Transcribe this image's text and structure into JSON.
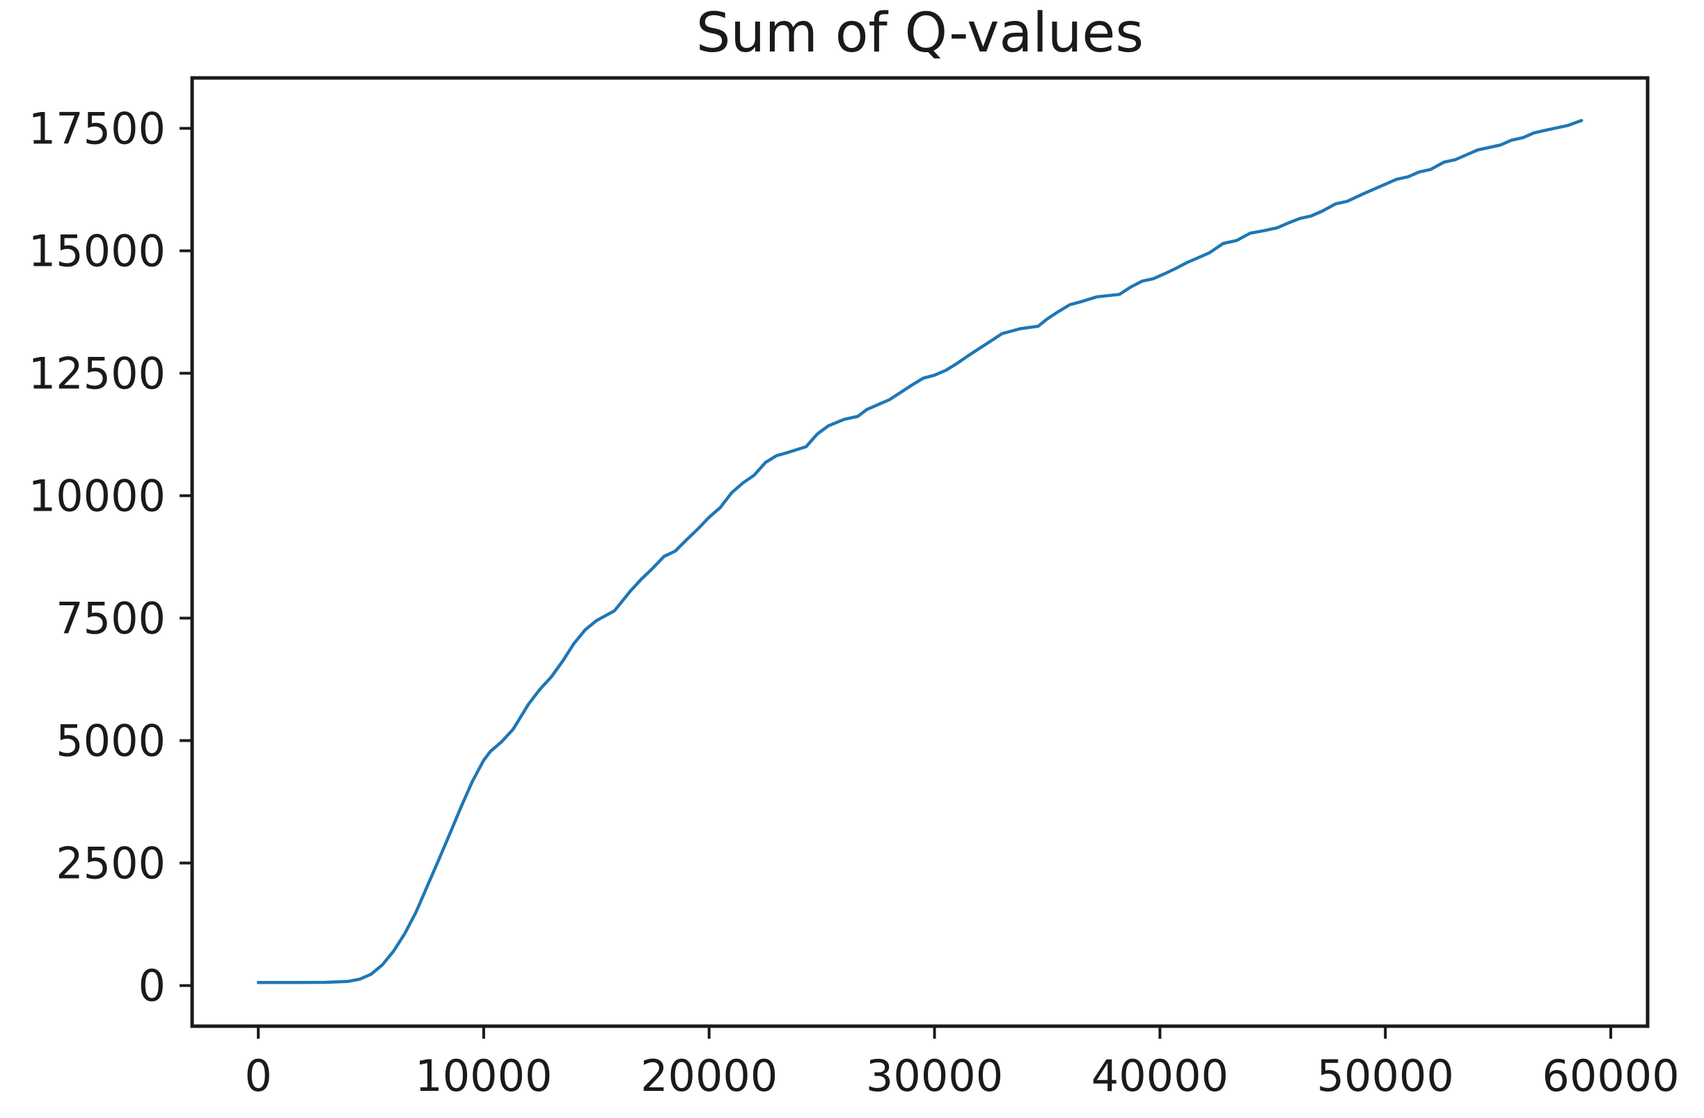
{
  "chart_data": {
    "type": "line",
    "title": "Sum of Q-values",
    "xlabel": "",
    "ylabel": "",
    "xlim": [
      -2935,
      61635
    ],
    "ylim": [
      -830,
      18530
    ],
    "x_ticks": [
      0,
      10000,
      20000,
      30000,
      40000,
      50000,
      60000
    ],
    "y_ticks": [
      0,
      2500,
      5000,
      7500,
      10000,
      12500,
      15000,
      17500
    ],
    "grid": false,
    "legend": "none",
    "line_color": "#1f77b4",
    "axis_color": "#1a1a1a",
    "background_color": "#ffffff",
    "series": [
      {
        "name": "sum-of-q-values",
        "points": [
          [
            0,
            60
          ],
          [
            1500,
            60
          ],
          [
            3000,
            65
          ],
          [
            4000,
            85
          ],
          [
            4500,
            130
          ],
          [
            5000,
            230
          ],
          [
            5500,
            420
          ],
          [
            6000,
            700
          ],
          [
            6500,
            1060
          ],
          [
            7000,
            1500
          ],
          [
            7500,
            2030
          ],
          [
            8000,
            2560
          ],
          [
            8500,
            3100
          ],
          [
            9000,
            3650
          ],
          [
            9500,
            4170
          ],
          [
            10000,
            4600
          ],
          [
            10300,
            4780
          ],
          [
            10800,
            4980
          ],
          [
            11300,
            5230
          ],
          [
            12000,
            5750
          ],
          [
            12500,
            6050
          ],
          [
            13000,
            6300
          ],
          [
            13500,
            6620
          ],
          [
            14000,
            6980
          ],
          [
            14500,
            7260
          ],
          [
            15000,
            7450
          ],
          [
            15400,
            7550
          ],
          [
            15800,
            7650
          ],
          [
            16500,
            8050
          ],
          [
            17000,
            8300
          ],
          [
            17500,
            8520
          ],
          [
            18000,
            8760
          ],
          [
            18500,
            8870
          ],
          [
            19000,
            9100
          ],
          [
            19500,
            9320
          ],
          [
            20000,
            9560
          ],
          [
            20500,
            9760
          ],
          [
            21000,
            10060
          ],
          [
            21500,
            10260
          ],
          [
            22000,
            10420
          ],
          [
            22500,
            10680
          ],
          [
            23000,
            10820
          ],
          [
            23400,
            10870
          ],
          [
            24300,
            11000
          ],
          [
            24800,
            11260
          ],
          [
            25300,
            11430
          ],
          [
            26000,
            11560
          ],
          [
            26600,
            11620
          ],
          [
            27000,
            11760
          ],
          [
            27500,
            11860
          ],
          [
            28000,
            11960
          ],
          [
            28500,
            12110
          ],
          [
            29000,
            12260
          ],
          [
            29500,
            12400
          ],
          [
            30000,
            12460
          ],
          [
            30500,
            12560
          ],
          [
            31000,
            12700
          ],
          [
            31500,
            12860
          ],
          [
            32000,
            13010
          ],
          [
            32500,
            13160
          ],
          [
            33000,
            13310
          ],
          [
            33800,
            13410
          ],
          [
            34600,
            13460
          ],
          [
            35000,
            13610
          ],
          [
            35500,
            13760
          ],
          [
            36000,
            13900
          ],
          [
            36500,
            13960
          ],
          [
            37200,
            14060
          ],
          [
            38200,
            14110
          ],
          [
            38700,
            14260
          ],
          [
            39200,
            14380
          ],
          [
            39700,
            14430
          ],
          [
            40200,
            14530
          ],
          [
            40700,
            14640
          ],
          [
            41200,
            14760
          ],
          [
            41700,
            14860
          ],
          [
            42200,
            14960
          ],
          [
            42800,
            15150
          ],
          [
            43400,
            15210
          ],
          [
            44000,
            15360
          ],
          [
            44600,
            15410
          ],
          [
            45200,
            15470
          ],
          [
            45700,
            15570
          ],
          [
            46200,
            15660
          ],
          [
            46700,
            15710
          ],
          [
            47200,
            15810
          ],
          [
            47800,
            15960
          ],
          [
            48300,
            16010
          ],
          [
            49000,
            16160
          ],
          [
            49500,
            16260
          ],
          [
            50000,
            16360
          ],
          [
            50500,
            16460
          ],
          [
            51000,
            16510
          ],
          [
            51500,
            16610
          ],
          [
            52000,
            16660
          ],
          [
            52600,
            16810
          ],
          [
            53100,
            16860
          ],
          [
            53600,
            16960
          ],
          [
            54100,
            17060
          ],
          [
            54600,
            17110
          ],
          [
            55100,
            17160
          ],
          [
            55600,
            17260
          ],
          [
            56100,
            17310
          ],
          [
            56600,
            17410
          ],
          [
            57100,
            17460
          ],
          [
            57600,
            17510
          ],
          [
            58100,
            17560
          ],
          [
            58700,
            17660
          ]
        ]
      }
    ]
  }
}
